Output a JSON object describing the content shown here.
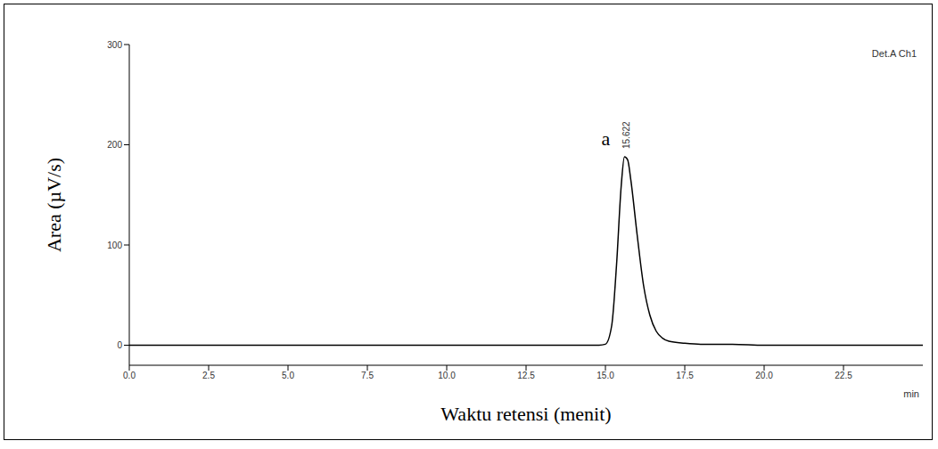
{
  "chart_data": {
    "type": "line",
    "title": "Det.A Ch1",
    "x_label": "Waktu retensi (menit)",
    "x_unit_label": "min",
    "y_label": "Area (µV/s)",
    "x": [
      0,
      14.8,
      15.0,
      15.2,
      15.35,
      15.5,
      15.6,
      15.7,
      15.8,
      16.0,
      16.2,
      16.4,
      16.6,
      16.8,
      17.0,
      17.5,
      18.0,
      18.7,
      19.0,
      20.0,
      25.0
    ],
    "series": [
      {
        "name": "Det.A Ch1",
        "color": "#000000",
        "values": [
          0,
          0,
          1,
          20,
          80,
          160,
          188,
          185,
          165,
          110,
          60,
          30,
          14,
          7,
          4,
          2,
          1,
          1,
          1,
          0,
          0
        ]
      }
    ],
    "xlim": [
      0,
      25
    ],
    "xticks": [
      {
        "value": 0,
        "label": "0.0"
      },
      {
        "value": 2.5,
        "label": "2.5"
      },
      {
        "value": 5,
        "label": "5.0"
      },
      {
        "value": 7.5,
        "label": "7.5"
      },
      {
        "value": 10,
        "label": "10.0"
      },
      {
        "value": 12.5,
        "label": "12.5"
      },
      {
        "value": 15,
        "label": "15.0"
      },
      {
        "value": 17.5,
        "label": "17.5"
      },
      {
        "value": 20,
        "label": "20.0"
      },
      {
        "value": 22.5,
        "label": "22.5"
      }
    ],
    "ylim": [
      -20,
      300
    ],
    "yticks": [
      0,
      100,
      200,
      300
    ],
    "grid": false,
    "annotations": [
      {
        "text": "a",
        "x": 15.15,
        "y": 200
      },
      {
        "text": "15.622",
        "x": 15.75,
        "y": 196
      }
    ]
  }
}
